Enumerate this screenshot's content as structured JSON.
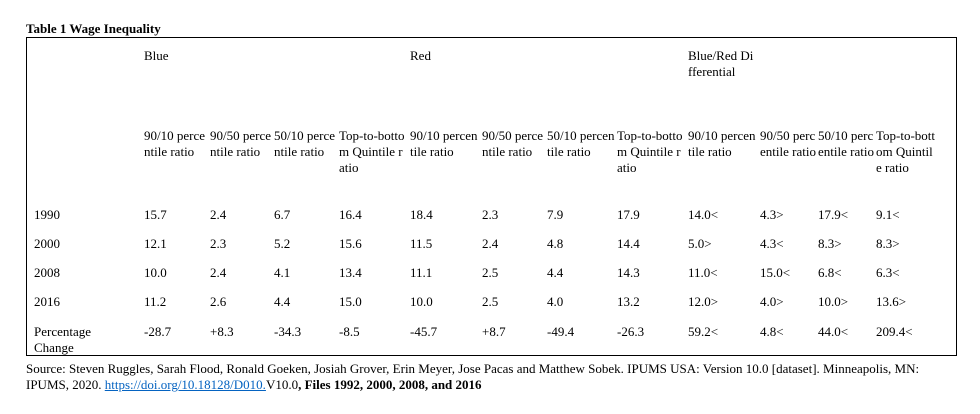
{
  "title": "Table 1 Wage Inequality",
  "groups": [
    "Blue",
    "Red",
    "Blue/Red Differential"
  ],
  "columns": [
    "90/10 percentile ratio",
    "90/50 percentile ratio",
    "50/10 percentile ratio",
    "Top-to-bottom Quintile ratio",
    "90/10 percentile ratio",
    "90/50 percentile ratio",
    "50/10 percentile ratio",
    "Top-to-bottom Quintile ratio",
    "90/10 percentile ratio",
    "90/50 percentile ratio",
    "50/10 percentile ratio",
    "Top-to-bottom Quintile ratio"
  ],
  "rows": [
    {
      "label": "1990",
      "values": [
        "15.7",
        "2.4",
        "6.7",
        "16.4",
        "18.4",
        "2.3",
        "7.9",
        "17.9",
        "14.0<",
        "4.3>",
        "17.9<",
        "9.1<"
      ]
    },
    {
      "label": "2000",
      "values": [
        "12.1",
        "2.3",
        "5.2",
        "15.6",
        "11.5",
        "2.4",
        "4.8",
        "14.4",
        "5.0>",
        "4.3<",
        "8.3>",
        "8.3>"
      ]
    },
    {
      "label": "2008",
      "values": [
        "10.0",
        "2.4",
        "4.1",
        "13.4",
        "11.1",
        "2.5",
        "4.4",
        "14.3",
        "11.0<",
        "15.0<",
        "6.8<",
        "6.3<"
      ]
    },
    {
      "label": "2016",
      "values": [
        "11.2",
        "2.6",
        "4.4",
        "15.0",
        "10.0",
        "2.5",
        "4.0",
        "13.2",
        "12.0>",
        "4.0>",
        "10.0>",
        "13.6>"
      ]
    },
    {
      "label": "Percentage Change",
      "values": [
        "-28.7",
        "+8.3",
        "-34.3",
        "-8.5",
        "-45.7",
        "+8.7",
        "-49.4",
        "-26.3",
        "59.2<",
        "4.8<",
        "44.0<",
        "209.4<"
      ]
    }
  ],
  "source": {
    "text": "Source: Steven Ruggles, Sarah Flood, Ronald Goeken, Josiah Grover, Erin Meyer, Jose Pacas and Matthew Sobek. IPUMS USA: Version 10.0 [dataset]. Minneapolis, MN: IPUMS, 2020. ",
    "link": "https://doi.org/10.18128/D010.",
    "after_link": "V10.0",
    "bold": ", Files 1992, 2000, 2008, and 2016"
  }
}
